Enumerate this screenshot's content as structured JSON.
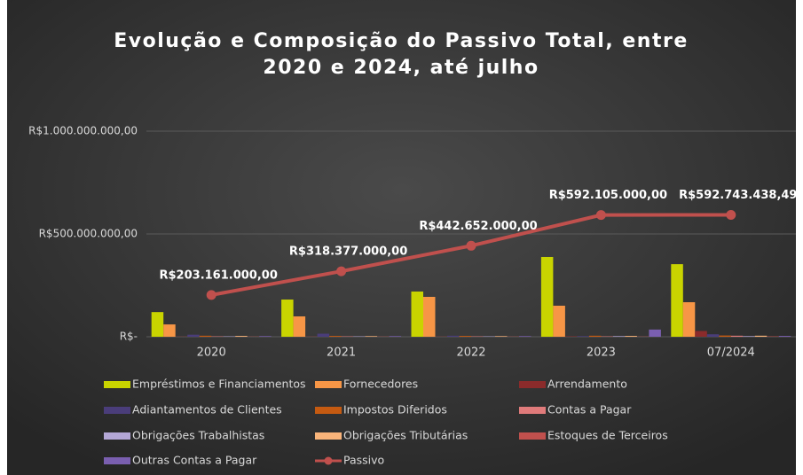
{
  "chart_data": {
    "type": "bar",
    "title": "Evolução e Composição do Passivo Total, entre 2020 e 2024, até julho",
    "categories": [
      "2020",
      "2021",
      "2022",
      "2023",
      "07/2024"
    ],
    "ylim": [
      0,
      1000000000
    ],
    "yticks": [
      {
        "value": 0,
        "label": "R$-"
      },
      {
        "value": 500000000,
        "label": "R$500.000.000,00"
      },
      {
        "value": 1000000000,
        "label": "R$1.000.000.000,00"
      }
    ],
    "grid": true,
    "series": [
      {
        "name": "Empréstimos e Financiamentos",
        "color": "#c9d400",
        "values": [
          120000000,
          181000000,
          220000000,
          388000000,
          353000000
        ]
      },
      {
        "name": "Fornecedores",
        "color": "#f79646",
        "values": [
          60000000,
          99000000,
          194000000,
          151000000,
          168000000
        ]
      },
      {
        "name": "Arrendamento",
        "color": "#8b2b2b",
        "values": [
          1000000,
          1000000,
          1000000,
          2000000,
          28000000
        ]
      },
      {
        "name": "Adiantamentos de Clientes",
        "color": "#4a3d7a",
        "values": [
          10000000,
          15000000,
          5000000,
          3000000,
          12000000
        ]
      },
      {
        "name": "Impostos Diferidos",
        "color": "#c55a11",
        "values": [
          5000000,
          4000000,
          4000000,
          5000000,
          6000000
        ]
      },
      {
        "name": "Contas a Pagar",
        "color": "#e07b7b",
        "values": [
          2000000,
          2000000,
          2000000,
          2000000,
          5000000
        ]
      },
      {
        "name": "Obrigações Trabalhistas",
        "color": "#b4a7d6",
        "values": [
          2000000,
          2000000,
          2000000,
          3000000,
          3000000
        ]
      },
      {
        "name": "Obrigações Tributárias",
        "color": "#f9b47a",
        "values": [
          4000000,
          3000000,
          3000000,
          4000000,
          5000000
        ]
      },
      {
        "name": "Estoques de Terceiros",
        "color": "#c0504d",
        "values": [
          1000000,
          1000000,
          1000000,
          1000000,
          2000000
        ]
      },
      {
        "name": "Outras Contas a Pagar",
        "color": "#7a5fb0",
        "values": [
          3000000,
          3000000,
          3000000,
          35000000,
          4000000
        ]
      },
      {
        "name": "Passivo",
        "type": "line",
        "color": "#c0504d",
        "values": [
          203161000,
          318377000,
          442652000,
          592105000,
          592743438.49
        ],
        "value_labels": [
          "R$203.161.000,00",
          "R$318.377.000,00",
          "R$442.652.000,00",
          "R$592.105.000,00",
          "R$592.743.438,49"
        ]
      }
    ]
  }
}
